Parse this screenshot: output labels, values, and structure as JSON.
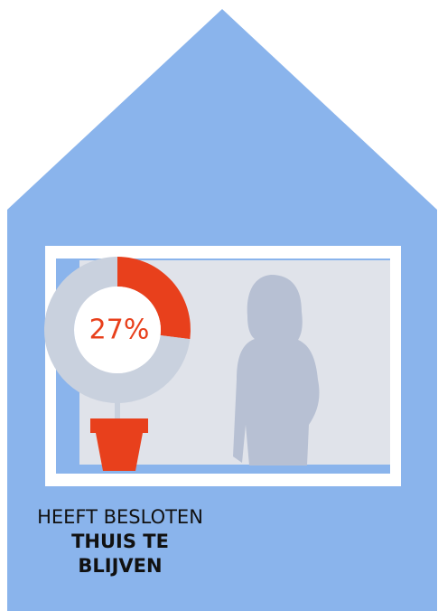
{
  "chart_data": {
    "type": "pie",
    "categories": [
      null,
      null
    ],
    "values": [
      27,
      73
    ],
    "value_labels": [
      "27%",
      null
    ],
    "colors": [
      "#e8401c",
      "#c9d1de"
    ],
    "text_lines": [
      "HEEFT BESLOTEN",
      "THUIS TE",
      "BLIJVEN"
    ]
  }
}
